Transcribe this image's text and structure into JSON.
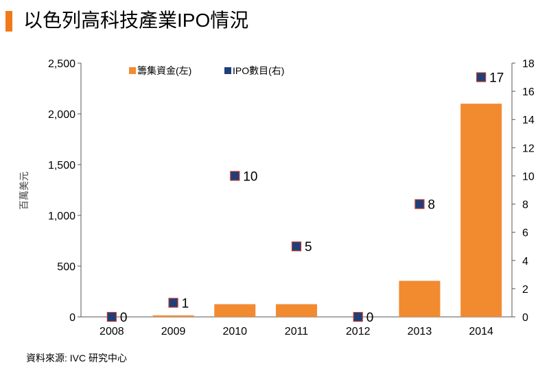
{
  "header": {
    "title": "以色列高科技產業IPO情況"
  },
  "source": "資料來源: IVC 研究中心",
  "colors": {
    "bar": "#f28a30",
    "marker_fill": "#1f3f7a",
    "marker_stroke": "#c0392b",
    "accent": "#f07a1a"
  },
  "chart_data": {
    "type": "bar",
    "categories": [
      "2008",
      "2009",
      "2010",
      "2011",
      "2012",
      "2013",
      "2014"
    ],
    "ylabel": "百萬美元",
    "ylim": [
      0,
      2500
    ],
    "yticks": [
      "0",
      "500",
      "1,000",
      "1,500",
      "2,000",
      "2,500"
    ],
    "y2lim": [
      0,
      18
    ],
    "y2ticks": [
      "0",
      "2",
      "4",
      "6",
      "8",
      "10",
      "12",
      "14",
      "16",
      "18"
    ],
    "legend_position": "top",
    "series": [
      {
        "name": "籌集資金(左)",
        "type": "bar",
        "axis": "left",
        "values": [
          0,
          15,
          125,
          125,
          0,
          355,
          2100
        ]
      },
      {
        "name": "IPO數目(右)",
        "type": "scatter",
        "axis": "right",
        "values": [
          0,
          1,
          10,
          5,
          0,
          8,
          17
        ],
        "labels": [
          "0",
          "1",
          "10",
          "5",
          "0",
          "8",
          "17"
        ]
      }
    ]
  }
}
